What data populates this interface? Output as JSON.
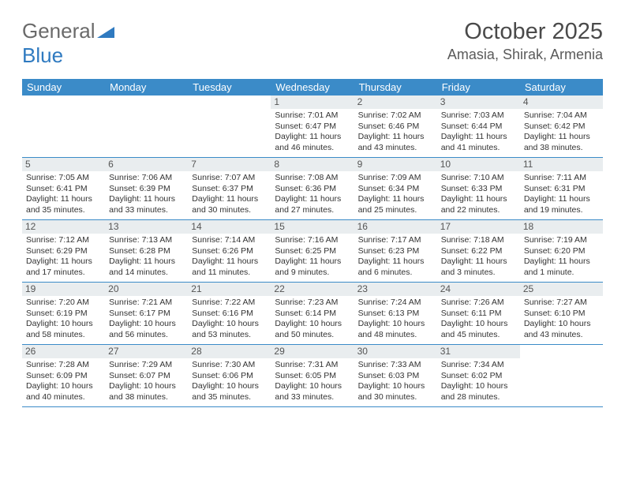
{
  "logo": {
    "part1": "General",
    "part2": "Blue"
  },
  "title": "October 2025",
  "location": "Amasia, Shirak, Armenia",
  "colors": {
    "header_bg": "#3b8bc8",
    "header_text": "#ffffff",
    "daynum_bg": "#e9edef",
    "border": "#3b8bc8",
    "text": "#333333",
    "logo_gray": "#6a6a6a",
    "logo_blue": "#2f7ac0"
  },
  "day_names": [
    "Sunday",
    "Monday",
    "Tuesday",
    "Wednesday",
    "Thursday",
    "Friday",
    "Saturday"
  ],
  "weeks": [
    [
      {
        "day": "",
        "sunrise": "",
        "sunset": "",
        "daylight": ""
      },
      {
        "day": "",
        "sunrise": "",
        "sunset": "",
        "daylight": ""
      },
      {
        "day": "",
        "sunrise": "",
        "sunset": "",
        "daylight": ""
      },
      {
        "day": "1",
        "sunrise": "Sunrise: 7:01 AM",
        "sunset": "Sunset: 6:47 PM",
        "daylight": "Daylight: 11 hours and 46 minutes."
      },
      {
        "day": "2",
        "sunrise": "Sunrise: 7:02 AM",
        "sunset": "Sunset: 6:46 PM",
        "daylight": "Daylight: 11 hours and 43 minutes."
      },
      {
        "day": "3",
        "sunrise": "Sunrise: 7:03 AM",
        "sunset": "Sunset: 6:44 PM",
        "daylight": "Daylight: 11 hours and 41 minutes."
      },
      {
        "day": "4",
        "sunrise": "Sunrise: 7:04 AM",
        "sunset": "Sunset: 6:42 PM",
        "daylight": "Daylight: 11 hours and 38 minutes."
      }
    ],
    [
      {
        "day": "5",
        "sunrise": "Sunrise: 7:05 AM",
        "sunset": "Sunset: 6:41 PM",
        "daylight": "Daylight: 11 hours and 35 minutes."
      },
      {
        "day": "6",
        "sunrise": "Sunrise: 7:06 AM",
        "sunset": "Sunset: 6:39 PM",
        "daylight": "Daylight: 11 hours and 33 minutes."
      },
      {
        "day": "7",
        "sunrise": "Sunrise: 7:07 AM",
        "sunset": "Sunset: 6:37 PM",
        "daylight": "Daylight: 11 hours and 30 minutes."
      },
      {
        "day": "8",
        "sunrise": "Sunrise: 7:08 AM",
        "sunset": "Sunset: 6:36 PM",
        "daylight": "Daylight: 11 hours and 27 minutes."
      },
      {
        "day": "9",
        "sunrise": "Sunrise: 7:09 AM",
        "sunset": "Sunset: 6:34 PM",
        "daylight": "Daylight: 11 hours and 25 minutes."
      },
      {
        "day": "10",
        "sunrise": "Sunrise: 7:10 AM",
        "sunset": "Sunset: 6:33 PM",
        "daylight": "Daylight: 11 hours and 22 minutes."
      },
      {
        "day": "11",
        "sunrise": "Sunrise: 7:11 AM",
        "sunset": "Sunset: 6:31 PM",
        "daylight": "Daylight: 11 hours and 19 minutes."
      }
    ],
    [
      {
        "day": "12",
        "sunrise": "Sunrise: 7:12 AM",
        "sunset": "Sunset: 6:29 PM",
        "daylight": "Daylight: 11 hours and 17 minutes."
      },
      {
        "day": "13",
        "sunrise": "Sunrise: 7:13 AM",
        "sunset": "Sunset: 6:28 PM",
        "daylight": "Daylight: 11 hours and 14 minutes."
      },
      {
        "day": "14",
        "sunrise": "Sunrise: 7:14 AM",
        "sunset": "Sunset: 6:26 PM",
        "daylight": "Daylight: 11 hours and 11 minutes."
      },
      {
        "day": "15",
        "sunrise": "Sunrise: 7:16 AM",
        "sunset": "Sunset: 6:25 PM",
        "daylight": "Daylight: 11 hours and 9 minutes."
      },
      {
        "day": "16",
        "sunrise": "Sunrise: 7:17 AM",
        "sunset": "Sunset: 6:23 PM",
        "daylight": "Daylight: 11 hours and 6 minutes."
      },
      {
        "day": "17",
        "sunrise": "Sunrise: 7:18 AM",
        "sunset": "Sunset: 6:22 PM",
        "daylight": "Daylight: 11 hours and 3 minutes."
      },
      {
        "day": "18",
        "sunrise": "Sunrise: 7:19 AM",
        "sunset": "Sunset: 6:20 PM",
        "daylight": "Daylight: 11 hours and 1 minute."
      }
    ],
    [
      {
        "day": "19",
        "sunrise": "Sunrise: 7:20 AM",
        "sunset": "Sunset: 6:19 PM",
        "daylight": "Daylight: 10 hours and 58 minutes."
      },
      {
        "day": "20",
        "sunrise": "Sunrise: 7:21 AM",
        "sunset": "Sunset: 6:17 PM",
        "daylight": "Daylight: 10 hours and 56 minutes."
      },
      {
        "day": "21",
        "sunrise": "Sunrise: 7:22 AM",
        "sunset": "Sunset: 6:16 PM",
        "daylight": "Daylight: 10 hours and 53 minutes."
      },
      {
        "day": "22",
        "sunrise": "Sunrise: 7:23 AM",
        "sunset": "Sunset: 6:14 PM",
        "daylight": "Daylight: 10 hours and 50 minutes."
      },
      {
        "day": "23",
        "sunrise": "Sunrise: 7:24 AM",
        "sunset": "Sunset: 6:13 PM",
        "daylight": "Daylight: 10 hours and 48 minutes."
      },
      {
        "day": "24",
        "sunrise": "Sunrise: 7:26 AM",
        "sunset": "Sunset: 6:11 PM",
        "daylight": "Daylight: 10 hours and 45 minutes."
      },
      {
        "day": "25",
        "sunrise": "Sunrise: 7:27 AM",
        "sunset": "Sunset: 6:10 PM",
        "daylight": "Daylight: 10 hours and 43 minutes."
      }
    ],
    [
      {
        "day": "26",
        "sunrise": "Sunrise: 7:28 AM",
        "sunset": "Sunset: 6:09 PM",
        "daylight": "Daylight: 10 hours and 40 minutes."
      },
      {
        "day": "27",
        "sunrise": "Sunrise: 7:29 AM",
        "sunset": "Sunset: 6:07 PM",
        "daylight": "Daylight: 10 hours and 38 minutes."
      },
      {
        "day": "28",
        "sunrise": "Sunrise: 7:30 AM",
        "sunset": "Sunset: 6:06 PM",
        "daylight": "Daylight: 10 hours and 35 minutes."
      },
      {
        "day": "29",
        "sunrise": "Sunrise: 7:31 AM",
        "sunset": "Sunset: 6:05 PM",
        "daylight": "Daylight: 10 hours and 33 minutes."
      },
      {
        "day": "30",
        "sunrise": "Sunrise: 7:33 AM",
        "sunset": "Sunset: 6:03 PM",
        "daylight": "Daylight: 10 hours and 30 minutes."
      },
      {
        "day": "31",
        "sunrise": "Sunrise: 7:34 AM",
        "sunset": "Sunset: 6:02 PM",
        "daylight": "Daylight: 10 hours and 28 minutes."
      },
      {
        "day": "",
        "sunrise": "",
        "sunset": "",
        "daylight": ""
      }
    ]
  ]
}
